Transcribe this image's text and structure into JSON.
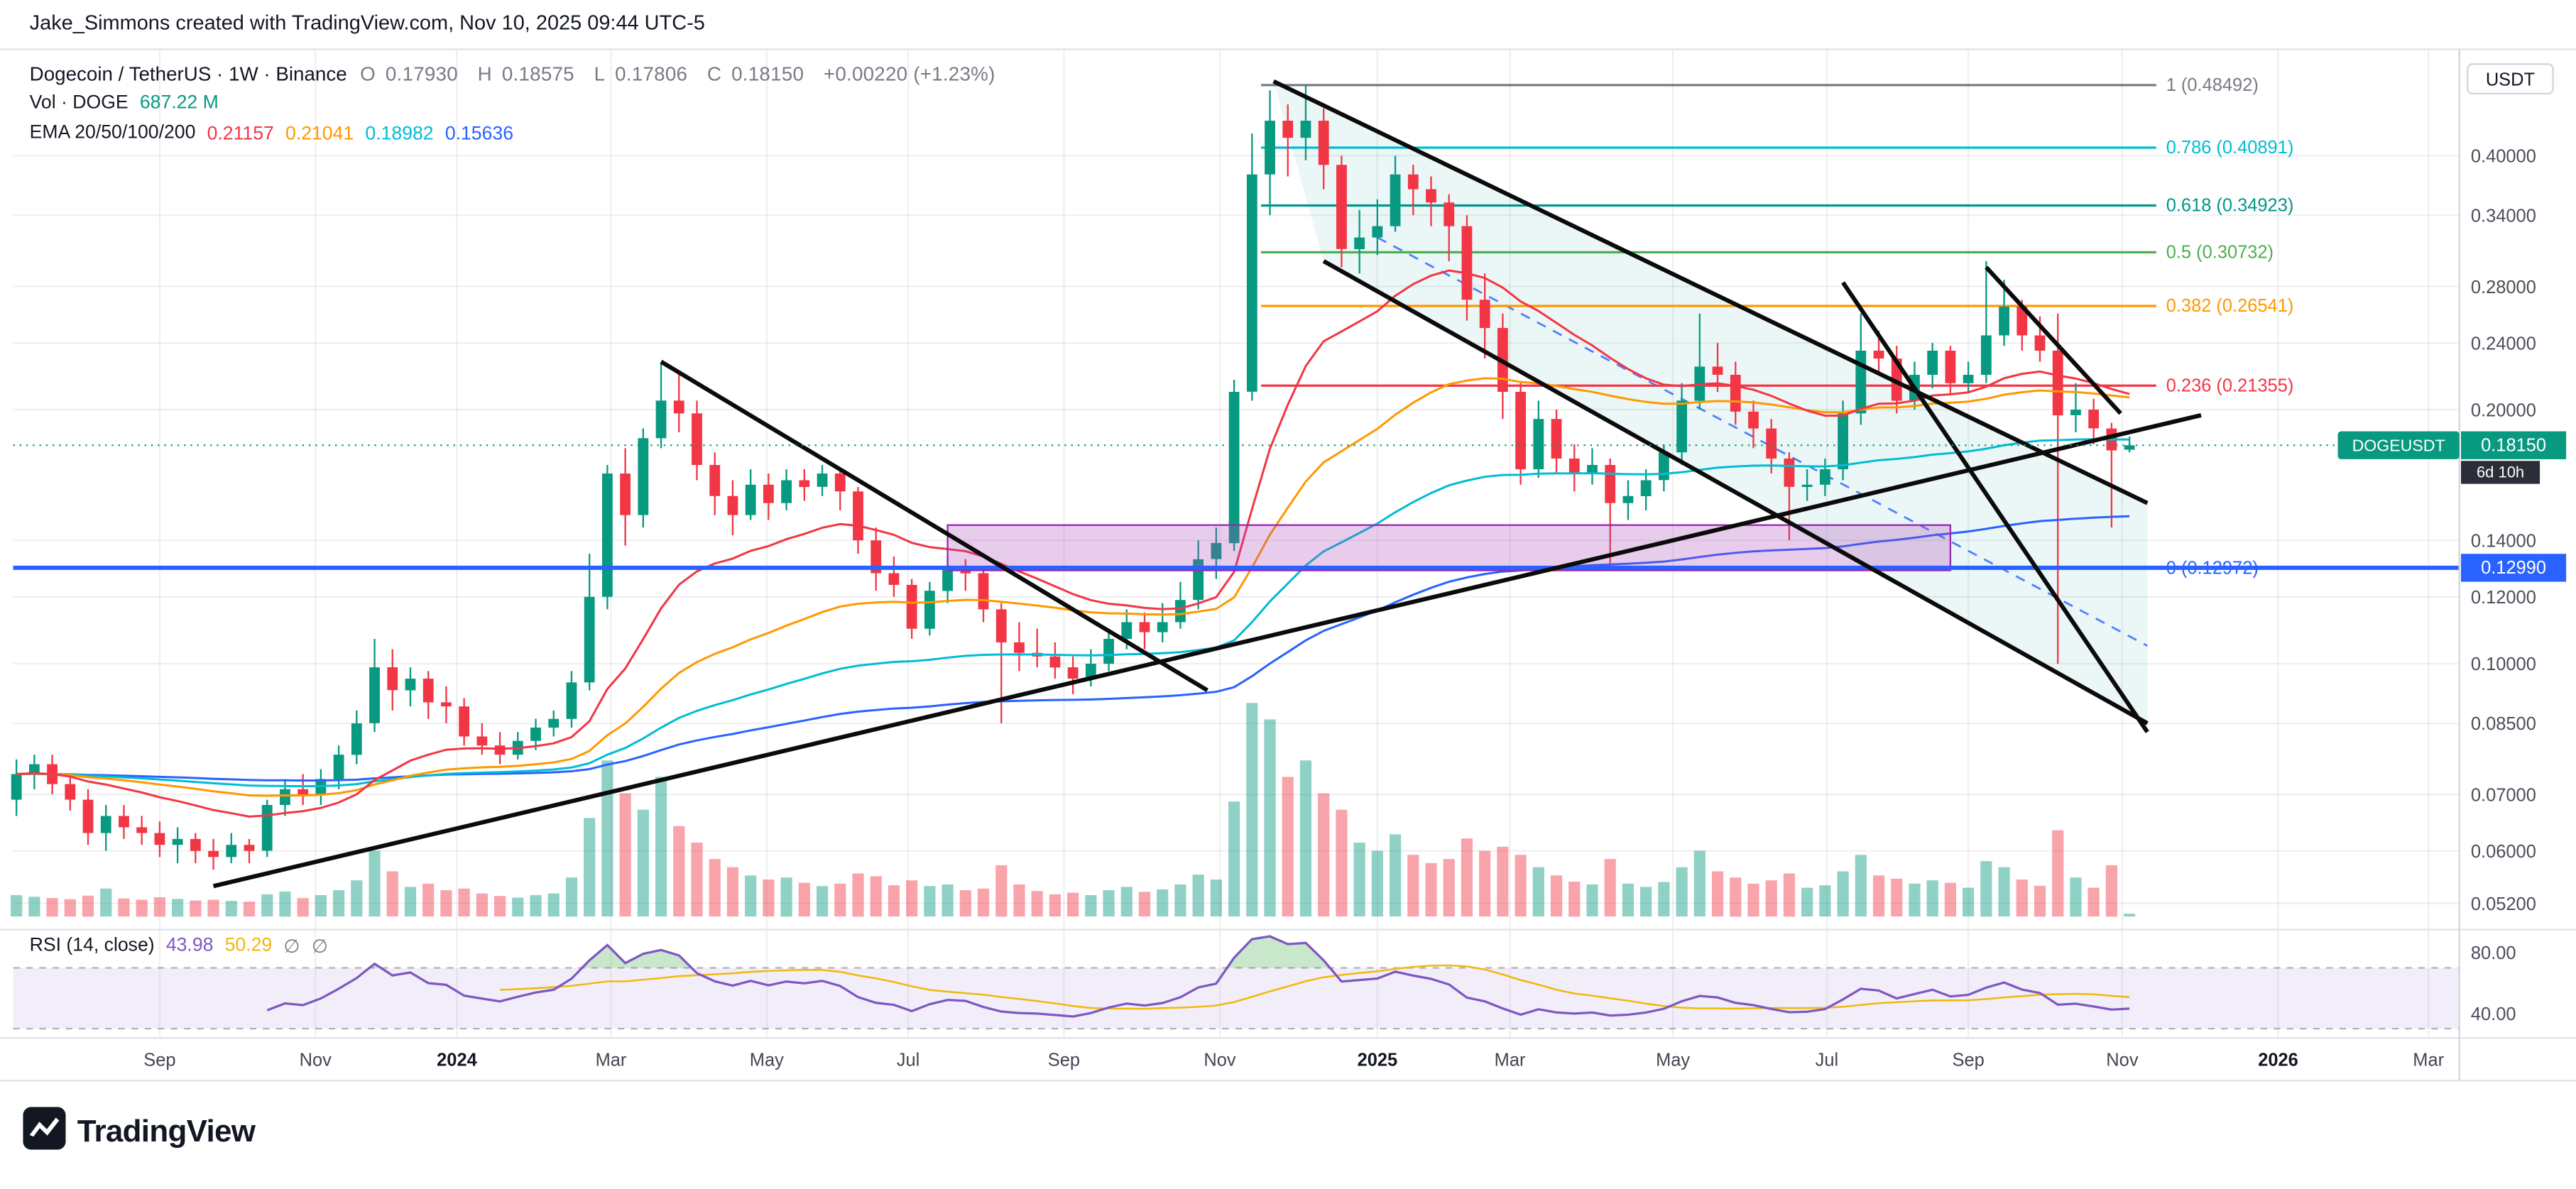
{
  "header": {
    "attribution": "Jake_Simmons created with TradingView.com, Nov 10, 2025 09:44 UTC-5"
  },
  "legend": {
    "symbol": "Dogecoin / TetherUS · 1W · Binance",
    "o_label": "O",
    "o": "0.17930",
    "h_label": "H",
    "h": "0.18575",
    "l_label": "L",
    "l": "0.17806",
    "c_label": "C",
    "c": "0.18150",
    "change": "+0.00220 (+1.23%)",
    "vol_label": "Vol · DOGE",
    "vol_value": "687.22 M",
    "ema_label": "EMA 20/50/100/200",
    "ema_values": [
      "0.21157",
      "0.21041",
      "0.18982",
      "0.15636"
    ]
  },
  "rsi_legend": {
    "label": "RSI",
    "params": "(14, close)",
    "value": "43.98",
    "ma_value": "50.29",
    "band1": "∅",
    "band2": "∅"
  },
  "price_axis": {
    "currency": "USDT",
    "ticks": [
      {
        "label": "0.40000",
        "value": 0.4
      },
      {
        "label": "0.34000",
        "value": 0.34
      },
      {
        "label": "0.28000",
        "value": 0.28
      },
      {
        "label": "0.24000",
        "value": 0.24
      },
      {
        "label": "0.20000",
        "value": 0.2
      },
      {
        "label": "0.14000",
        "value": 0.14
      },
      {
        "label": "0.12000",
        "value": 0.12
      },
      {
        "label": "0.10000",
        "value": 0.1
      },
      {
        "label": "0.08500",
        "value": 0.085
      },
      {
        "label": "0.07000",
        "value": 0.07
      },
      {
        "label": "0.06000",
        "value": 0.06
      },
      {
        "label": "0.05200",
        "value": 0.052
      }
    ],
    "current": {
      "symbol": "DOGEUSDT",
      "price": "0.18150",
      "countdown": "6d 10h"
    },
    "level": {
      "price": "0.12990"
    }
  },
  "rsi_axis": {
    "ticks": [
      {
        "label": "80.00",
        "value": 80
      },
      {
        "label": "40.00",
        "value": 40
      }
    ]
  },
  "time_axis": {
    "labels": [
      {
        "text": "Sep",
        "i": 8
      },
      {
        "text": "Nov",
        "i": 16.7
      },
      {
        "text": "2024",
        "i": 24.6,
        "year": true
      },
      {
        "text": "Mar",
        "i": 33.2
      },
      {
        "text": "May",
        "i": 41.9
      },
      {
        "text": "Jul",
        "i": 49.8
      },
      {
        "text": "Sep",
        "i": 58.5
      },
      {
        "text": "Nov",
        "i": 67.2
      },
      {
        "text": "2025",
        "i": 76,
        "year": true
      },
      {
        "text": "Mar",
        "i": 83.4
      },
      {
        "text": "May",
        "i": 92.5
      },
      {
        "text": "Jul",
        "i": 101.1
      },
      {
        "text": "Sep",
        "i": 109
      },
      {
        "text": "Nov",
        "i": 117.6
      },
      {
        "text": "2026",
        "i": 126.3,
        "year": true
      },
      {
        "text": "Mar",
        "i": 134.7
      }
    ]
  },
  "footer": {
    "brand": "TradingView"
  },
  "colors": {
    "up": "#089981",
    "down": "#f23645",
    "accent_blue": "#2962ff"
  },
  "chart_data": {
    "type": "candlestick",
    "symbol": "DOGEUSDT",
    "exchange": "Binance",
    "timeframe": "1W",
    "price_scale": "log",
    "ylim": [
      0.052,
      0.5
    ],
    "title": "Dogecoin / TetherUS · 1W · Binance",
    "candles": [
      [
        0.069,
        0.077,
        0.066,
        0.074
      ],
      [
        0.074,
        0.078,
        0.071,
        0.076
      ],
      [
        0.076,
        0.078,
        0.07,
        0.072
      ],
      [
        0.072,
        0.074,
        0.067,
        0.069
      ],
      [
        0.069,
        0.071,
        0.061,
        0.063
      ],
      [
        0.063,
        0.068,
        0.06,
        0.066
      ],
      [
        0.066,
        0.068,
        0.062,
        0.064
      ],
      [
        0.064,
        0.066,
        0.061,
        0.063
      ],
      [
        0.063,
        0.065,
        0.059,
        0.061
      ],
      [
        0.061,
        0.064,
        0.058,
        0.062
      ],
      [
        0.062,
        0.063,
        0.058,
        0.06
      ],
      [
        0.06,
        0.062,
        0.057,
        0.059
      ],
      [
        0.059,
        0.063,
        0.058,
        0.061
      ],
      [
        0.061,
        0.062,
        0.058,
        0.06
      ],
      [
        0.06,
        0.069,
        0.059,
        0.068
      ],
      [
        0.068,
        0.073,
        0.066,
        0.071
      ],
      [
        0.071,
        0.074,
        0.068,
        0.07
      ],
      [
        0.07,
        0.075,
        0.068,
        0.073
      ],
      [
        0.073,
        0.08,
        0.071,
        0.078
      ],
      [
        0.078,
        0.088,
        0.076,
        0.085
      ],
      [
        0.085,
        0.107,
        0.083,
        0.099
      ],
      [
        0.099,
        0.104,
        0.088,
        0.093
      ],
      [
        0.093,
        0.099,
        0.089,
        0.096
      ],
      [
        0.096,
        0.098,
        0.086,
        0.09
      ],
      [
        0.09,
        0.094,
        0.085,
        0.089
      ],
      [
        0.089,
        0.091,
        0.08,
        0.082
      ],
      [
        0.082,
        0.085,
        0.078,
        0.08
      ],
      [
        0.08,
        0.083,
        0.076,
        0.078
      ],
      [
        0.078,
        0.083,
        0.077,
        0.081
      ],
      [
        0.081,
        0.086,
        0.079,
        0.084
      ],
      [
        0.084,
        0.088,
        0.082,
        0.086
      ],
      [
        0.086,
        0.098,
        0.084,
        0.095
      ],
      [
        0.095,
        0.135,
        0.093,
        0.12
      ],
      [
        0.12,
        0.172,
        0.116,
        0.168
      ],
      [
        0.168,
        0.18,
        0.138,
        0.15
      ],
      [
        0.15,
        0.19,
        0.145,
        0.185
      ],
      [
        0.185,
        0.227,
        0.18,
        0.205
      ],
      [
        0.205,
        0.222,
        0.188,
        0.198
      ],
      [
        0.198,
        0.205,
        0.165,
        0.172
      ],
      [
        0.172,
        0.178,
        0.15,
        0.158
      ],
      [
        0.158,
        0.165,
        0.142,
        0.15
      ],
      [
        0.15,
        0.17,
        0.148,
        0.163
      ],
      [
        0.163,
        0.168,
        0.148,
        0.155
      ],
      [
        0.155,
        0.17,
        0.152,
        0.165
      ],
      [
        0.165,
        0.17,
        0.156,
        0.162
      ],
      [
        0.162,
        0.172,
        0.158,
        0.168
      ],
      [
        0.168,
        0.17,
        0.152,
        0.16
      ],
      [
        0.16,
        0.162,
        0.135,
        0.14
      ],
      [
        0.14,
        0.145,
        0.122,
        0.128
      ],
      [
        0.128,
        0.134,
        0.12,
        0.124
      ],
      [
        0.124,
        0.126,
        0.107,
        0.11
      ],
      [
        0.11,
        0.125,
        0.108,
        0.122
      ],
      [
        0.122,
        0.134,
        0.118,
        0.13
      ],
      [
        0.13,
        0.133,
        0.122,
        0.128
      ],
      [
        0.128,
        0.13,
        0.112,
        0.116
      ],
      [
        0.116,
        0.118,
        0.085,
        0.106
      ],
      [
        0.106,
        0.112,
        0.098,
        0.103
      ],
      [
        0.103,
        0.11,
        0.099,
        0.102
      ],
      [
        0.102,
        0.106,
        0.096,
        0.099
      ],
      [
        0.099,
        0.102,
        0.092,
        0.096
      ],
      [
        0.096,
        0.104,
        0.094,
        0.1
      ],
      [
        0.1,
        0.11,
        0.098,
        0.107
      ],
      [
        0.107,
        0.116,
        0.104,
        0.112
      ],
      [
        0.112,
        0.115,
        0.104,
        0.109
      ],
      [
        0.109,
        0.118,
        0.106,
        0.112
      ],
      [
        0.112,
        0.125,
        0.11,
        0.119
      ],
      [
        0.119,
        0.14,
        0.116,
        0.133
      ],
      [
        0.133,
        0.145,
        0.126,
        0.139
      ],
      [
        0.139,
        0.217,
        0.136,
        0.21
      ],
      [
        0.21,
        0.425,
        0.205,
        0.38
      ],
      [
        0.38,
        0.478,
        0.34,
        0.44
      ],
      [
        0.44,
        0.46,
        0.378,
        0.42
      ],
      [
        0.42,
        0.48492,
        0.395,
        0.44
      ],
      [
        0.44,
        0.455,
        0.365,
        0.39
      ],
      [
        0.39,
        0.4,
        0.295,
        0.31
      ],
      [
        0.31,
        0.345,
        0.29,
        0.32
      ],
      [
        0.32,
        0.355,
        0.305,
        0.33
      ],
      [
        0.33,
        0.4,
        0.325,
        0.38
      ],
      [
        0.38,
        0.39,
        0.34,
        0.365
      ],
      [
        0.365,
        0.378,
        0.33,
        0.352
      ],
      [
        0.352,
        0.36,
        0.3,
        0.33
      ],
      [
        0.33,
        0.34,
        0.255,
        0.27
      ],
      [
        0.27,
        0.29,
        0.23,
        0.25
      ],
      [
        0.25,
        0.26,
        0.195,
        0.21
      ],
      [
        0.21,
        0.215,
        0.163,
        0.17
      ],
      [
        0.17,
        0.205,
        0.166,
        0.195
      ],
      [
        0.195,
        0.2,
        0.168,
        0.175
      ],
      [
        0.175,
        0.182,
        0.16,
        0.168
      ],
      [
        0.168,
        0.18,
        0.163,
        0.172
      ],
      [
        0.172,
        0.175,
        0.13,
        0.155
      ],
      [
        0.155,
        0.165,
        0.148,
        0.158
      ],
      [
        0.158,
        0.17,
        0.152,
        0.165
      ],
      [
        0.165,
        0.182,
        0.16,
        0.178
      ],
      [
        0.178,
        0.215,
        0.172,
        0.205
      ],
      [
        0.205,
        0.26,
        0.2,
        0.225
      ],
      [
        0.225,
        0.24,
        0.21,
        0.22
      ],
      [
        0.22,
        0.228,
        0.192,
        0.199
      ],
      [
        0.199,
        0.205,
        0.18,
        0.19
      ],
      [
        0.19,
        0.195,
        0.168,
        0.175
      ],
      [
        0.175,
        0.178,
        0.14,
        0.162
      ],
      [
        0.162,
        0.17,
        0.156,
        0.163
      ],
      [
        0.163,
        0.175,
        0.158,
        0.17
      ],
      [
        0.17,
        0.205,
        0.165,
        0.198
      ],
      [
        0.198,
        0.26,
        0.192,
        0.235
      ],
      [
        0.235,
        0.248,
        0.22,
        0.23
      ],
      [
        0.23,
        0.238,
        0.198,
        0.205
      ],
      [
        0.205,
        0.228,
        0.2,
        0.22
      ],
      [
        0.22,
        0.24,
        0.212,
        0.235
      ],
      [
        0.235,
        0.238,
        0.208,
        0.215
      ],
      [
        0.215,
        0.228,
        0.21,
        0.22
      ],
      [
        0.22,
        0.3,
        0.215,
        0.245
      ],
      [
        0.245,
        0.285,
        0.238,
        0.265
      ],
      [
        0.265,
        0.27,
        0.235,
        0.245
      ],
      [
        0.245,
        0.258,
        0.228,
        0.235
      ],
      [
        0.235,
        0.26,
        0.1,
        0.197
      ],
      [
        0.197,
        0.215,
        0.188,
        0.2
      ],
      [
        0.2,
        0.206,
        0.182,
        0.19
      ],
      [
        0.19,
        0.193,
        0.145,
        0.179
      ],
      [
        0.1793,
        0.18575,
        0.17806,
        0.1815
      ]
    ],
    "volumes_m": [
      5200,
      4800,
      4500,
      4200,
      5100,
      6800,
      4400,
      4100,
      4700,
      4300,
      3900,
      4100,
      3800,
      3600,
      5400,
      6100,
      4500,
      5200,
      6400,
      8800,
      16000,
      11000,
      7200,
      8000,
      6400,
      6800,
      5600,
      5000,
      4600,
      5200,
      5600,
      9500,
      24000,
      38000,
      30000,
      26000,
      34000,
      22000,
      18000,
      14000,
      12000,
      10000,
      9000,
      9500,
      8200,
      7400,
      8000,
      10500,
      9800,
      7600,
      8800,
      7400,
      7800,
      6400,
      6800,
      12500,
      7800,
      6200,
      5400,
      5800,
      5200,
      6400,
      7200,
      6000,
      6600,
      7800,
      10200,
      9000,
      28000,
      52000,
      48000,
      34000,
      38000,
      30000,
      26000,
      18000,
      16000,
      20000,
      15000,
      13000,
      14000,
      19000,
      16000,
      17000,
      15000,
      12000,
      10000,
      8500,
      7800,
      14000,
      8000,
      7200,
      8400,
      12000,
      16000,
      11000,
      9500,
      8000,
      8800,
      10500,
      7000,
      7600,
      11000,
      15000,
      10000,
      9200,
      8000,
      8800,
      8200,
      7000,
      13500,
      12000,
      9000,
      7500,
      21000,
      9500,
      7000,
      12500,
      687.22
    ],
    "ema_periods": [
      20,
      50,
      100,
      200
    ],
    "ema_colors": [
      "#f23645",
      "#ff9800",
      "#00bcd4",
      "#2962ff"
    ],
    "fib": {
      "i0": 69.5,
      "i1": 119.5,
      "levels": [
        {
          "label": "1 (0.48492)",
          "price": 0.48492,
          "color": "#787b86"
        },
        {
          "label": "0.786 (0.40891)",
          "price": 0.40891,
          "color": "#00bcd4"
        },
        {
          "label": "0.618 (0.34923)",
          "price": 0.34923,
          "color": "#009688"
        },
        {
          "label": "0.5 (0.30732)",
          "price": 0.30732,
          "color": "#4caf50"
        },
        {
          "label": "0.382 (0.26541)",
          "price": 0.26541,
          "color": "#ff9800"
        },
        {
          "label": "0.236 (0.21355)",
          "price": 0.21355,
          "color": "#f23645"
        },
        {
          "label": "0 (0.12972)",
          "price": 0.12972,
          "color": "#2962ff"
        }
      ]
    },
    "level_line": {
      "price": 0.1299,
      "color": "#2962ff"
    },
    "current_price": 0.1815,
    "zone": {
      "i0": 52,
      "i1": 108,
      "p_low": 0.129,
      "p_high": 0.146,
      "fill": "rgba(171,71,188,0.28)",
      "stroke": "#9c27b0"
    },
    "trendlines": [
      {
        "x1": 11,
        "p1": 0.0545,
        "x2": 122,
        "p2": 0.197
      },
      {
        "x1": 36,
        "p1": 0.228,
        "x2": 66.5,
        "p2": 0.093
      },
      {
        "x1": 70.2,
        "p1": 0.49,
        "x2": 119,
        "p2": 0.155
      },
      {
        "x1": 73,
        "p1": 0.3,
        "x2": 119,
        "p2": 0.085
      },
      {
        "x1": 102,
        "p1": 0.283,
        "x2": 119,
        "p2": 0.083
      },
      {
        "x1": 110,
        "p1": 0.295,
        "x2": 117.5,
        "p2": 0.198
      }
    ],
    "channel": {
      "top": [
        [
          70.2,
          0.49
        ],
        [
          119,
          0.155
        ]
      ],
      "bottom": [
        [
          73,
          0.3
        ],
        [
          119,
          0.085
        ]
      ],
      "mid": [
        [
          76,
          0.32
        ],
        [
          119,
          0.105
        ]
      ],
      "fill": "rgba(0,150,136,0.08)",
      "mid_color": "#2962ff"
    },
    "rsi": {
      "period": 14,
      "ma_period": 14,
      "overbought": 70,
      "oversold": 30,
      "line_color": "#7e57c2",
      "ma_color": "#f0b90b",
      "band_fill": "rgba(126,87,194,0.1)"
    }
  }
}
